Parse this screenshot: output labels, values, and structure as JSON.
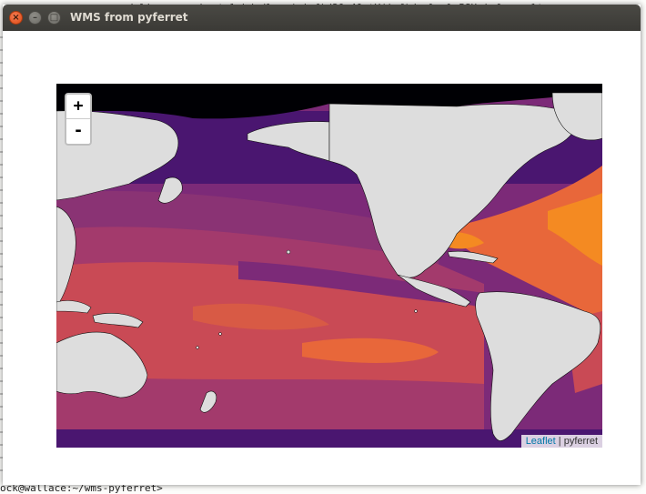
{
  "terminal": {
    "top_line": "/plivox.map.bost.lobds/lov.(.icf)/30.40.tY(icf)/col.pl.PSH.icfroc.alt",
    "prompt": "ock@wallace:~/wms-pyferret>"
  },
  "window": {
    "title": "WMS from pyferret",
    "buttons": {
      "close": "×",
      "minimize": "–",
      "maximize": "□"
    }
  },
  "map": {
    "zoom_in": "+",
    "zoom_out": "-",
    "attribution_link": "Leaflet",
    "attribution_separator": " | ",
    "attribution_text": "pyferret",
    "colors": {
      "land": "#dddddd",
      "ice": "#000004",
      "cold": "#4a1670",
      "cool": "#7c2a78",
      "mid": "#a33a6c",
      "warm": "#c94a55",
      "hot": "#e8673a",
      "hottest": "#f48a22"
    }
  }
}
